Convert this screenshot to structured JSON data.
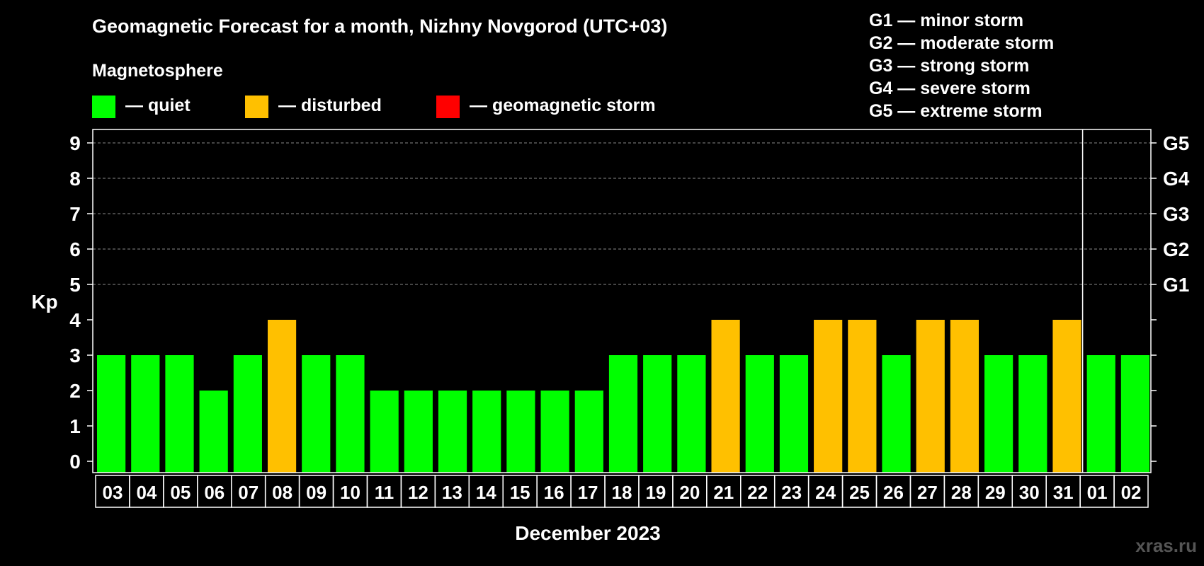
{
  "chart_data": {
    "type": "bar",
    "title": "Geomagnetic Forecast for a month, Nizhny Novgorod (UTC+03)",
    "legend_title": "Magnetosphere",
    "legend": [
      {
        "label": "— quiet",
        "color": "#00ff00"
      },
      {
        "label": "— disturbed",
        "color": "#ffc000"
      },
      {
        "label": "— geomagnetic storm",
        "color": "#ff0000"
      }
    ],
    "storm_scale": [
      "G1 — minor storm",
      "G2 — moderate storm",
      "G3 — strong storm",
      "G4 — severe storm",
      "G5 — extreme storm"
    ],
    "categories": [
      "03",
      "04",
      "05",
      "06",
      "07",
      "08",
      "09",
      "10",
      "11",
      "12",
      "13",
      "14",
      "15",
      "16",
      "17",
      "18",
      "19",
      "20",
      "21",
      "22",
      "23",
      "24",
      "25",
      "26",
      "27",
      "28",
      "29",
      "30",
      "31",
      "01",
      "02"
    ],
    "values": [
      3,
      3,
      3,
      2,
      3,
      4,
      3,
      3,
      2,
      2,
      2,
      2,
      2,
      2,
      2,
      3,
      3,
      3,
      4,
      3,
      3,
      4,
      4,
      3,
      4,
      4,
      3,
      3,
      4,
      3,
      3
    ],
    "ylabel": "Kp",
    "xlabel": "December 2023",
    "ylim": [
      0,
      9
    ],
    "yticks": [
      "0",
      "1",
      "2",
      "3",
      "4",
      "5",
      "6",
      "7",
      "8",
      "9"
    ],
    "g_levels": [
      {
        "kp": 5,
        "label": "G1"
      },
      {
        "kp": 6,
        "label": "G2"
      },
      {
        "kp": 7,
        "label": "G3"
      },
      {
        "kp": 8,
        "label": "G4"
      },
      {
        "kp": 9,
        "label": "G5"
      }
    ],
    "month_boundary_after": "31",
    "watermark": "xras.ru"
  }
}
